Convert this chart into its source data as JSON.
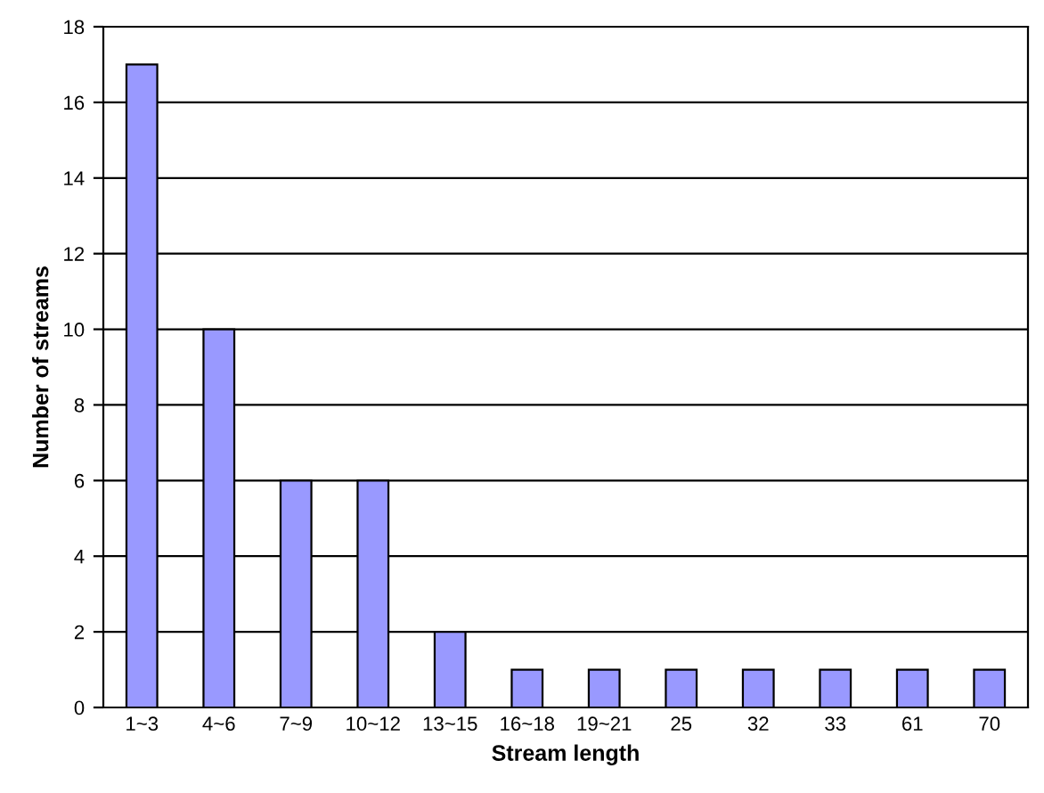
{
  "chart_data": {
    "type": "bar",
    "xlabel": "Stream length",
    "ylabel": "Number of streams",
    "categories": [
      "1~3",
      "4~6",
      "7~9",
      "10~12",
      "13~15",
      "16~18",
      "19~21",
      "25",
      "32",
      "33",
      "61",
      "70"
    ],
    "values": [
      17,
      10,
      6,
      6,
      2,
      1,
      1,
      1,
      1,
      1,
      1,
      1
    ],
    "color": "#9999ff",
    "ylim": [
      0,
      18
    ],
    "yticks": [
      0,
      2,
      4,
      6,
      8,
      10,
      12,
      14,
      16,
      18
    ],
    "grid": "y",
    "legend": false
  }
}
